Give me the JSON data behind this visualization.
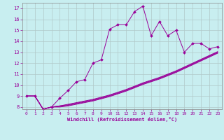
{
  "xlabel": "Windchill (Refroidissement éolien,°C)",
  "xlim": [
    -0.5,
    23.5
  ],
  "ylim": [
    7.8,
    17.5
  ],
  "xticks": [
    0,
    1,
    2,
    3,
    4,
    5,
    6,
    7,
    8,
    9,
    10,
    11,
    12,
    13,
    14,
    15,
    16,
    17,
    18,
    19,
    20,
    21,
    22,
    23
  ],
  "yticks": [
    8,
    9,
    10,
    11,
    12,
    13,
    14,
    15,
    16,
    17
  ],
  "bg_color": "#c8eef0",
  "line_color": "#990099",
  "grid_color": "#b0c8c8",
  "series": [
    [
      9.0,
      9.0,
      7.8,
      8.0,
      8.8,
      9.5,
      10.3,
      10.5,
      12.0,
      12.3,
      15.1,
      15.5,
      15.5,
      16.7,
      17.2,
      14.5,
      15.8,
      14.5,
      15.0,
      13.0,
      13.8,
      13.8,
      13.3,
      13.5
    ],
    [
      9.0,
      9.0,
      7.8,
      8.0,
      8.1,
      8.25,
      8.4,
      8.55,
      8.7,
      8.9,
      9.1,
      9.35,
      9.6,
      9.9,
      10.2,
      10.45,
      10.7,
      11.0,
      11.3,
      11.65,
      12.0,
      12.35,
      12.7,
      13.05
    ],
    [
      9.0,
      9.0,
      7.8,
      8.0,
      8.1,
      8.2,
      8.35,
      8.5,
      8.65,
      8.85,
      9.05,
      9.3,
      9.55,
      9.85,
      10.15,
      10.4,
      10.65,
      10.95,
      11.25,
      11.6,
      11.95,
      12.3,
      12.65,
      13.0
    ],
    [
      9.0,
      9.0,
      7.8,
      8.0,
      8.05,
      8.15,
      8.3,
      8.45,
      8.6,
      8.8,
      9.0,
      9.25,
      9.5,
      9.8,
      10.1,
      10.35,
      10.6,
      10.9,
      11.2,
      11.55,
      11.9,
      12.25,
      12.6,
      12.95
    ],
    [
      9.0,
      9.0,
      7.8,
      8.0,
      8.0,
      8.1,
      8.25,
      8.4,
      8.55,
      8.75,
      8.95,
      9.2,
      9.45,
      9.75,
      10.05,
      10.3,
      10.55,
      10.85,
      11.15,
      11.5,
      11.85,
      12.2,
      12.55,
      12.9
    ]
  ]
}
